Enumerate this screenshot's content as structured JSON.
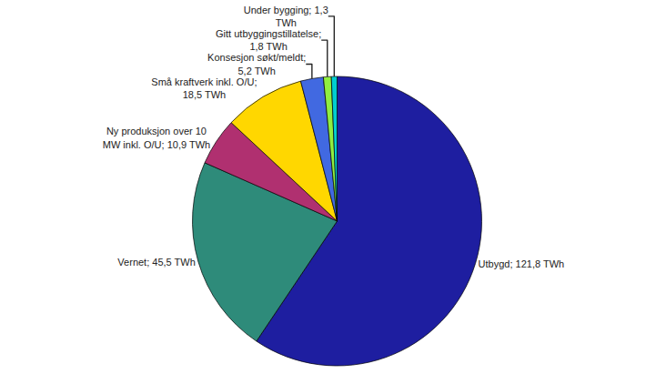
{
  "chart_data": {
    "type": "pie",
    "categories": [
      "Utbygd; 121,8 TWh",
      "Vernet; 45,5 TWh",
      "Ny produksjon over 10\nMW inkl. O/U; 10,9 TWh",
      "Små kraftverk inkl. O/U;\n18,5 TWh",
      "Konsesjon søkt/meldt;\n5,2 TWh",
      "Gitt utbyggingstillatelse;\n1,8 TWh",
      "Under bygging; 1,3\nTWh"
    ],
    "values": [
      121.8,
      45.5,
      10.9,
      18.5,
      5.2,
      1.8,
      1.3
    ],
    "colors": [
      "#1E1EA0",
      "#2E8B7A",
      "#B03070",
      "#FFD700",
      "#4169E1",
      "#90EE40",
      "#00CED1"
    ]
  }
}
